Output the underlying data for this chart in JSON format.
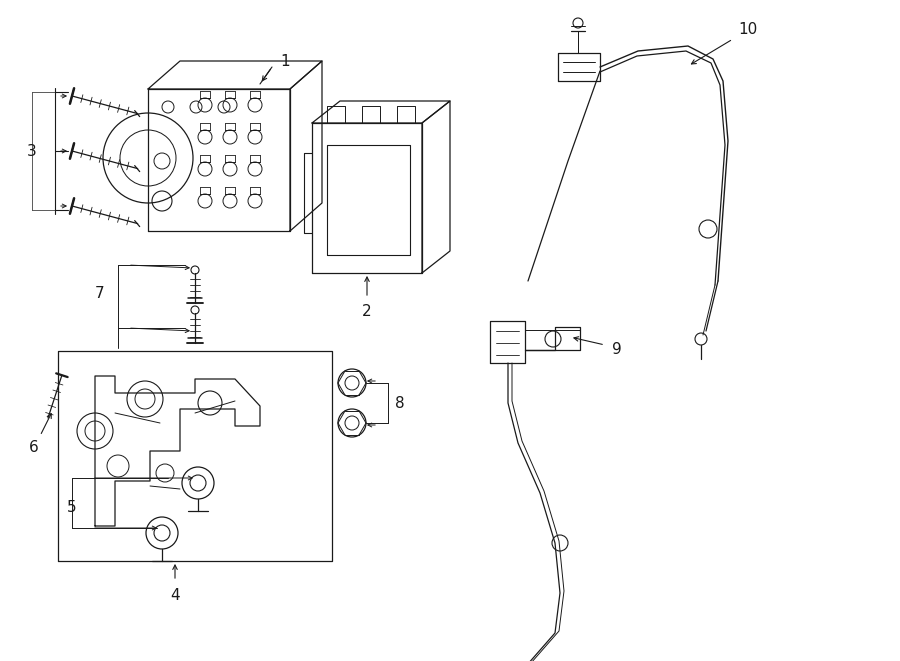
{
  "bg_color": "#ffffff",
  "line_color": "#1a1a1a",
  "lw": 0.9,
  "figsize": [
    9.0,
    6.61
  ],
  "dpi": 100,
  "label_fs": 11
}
